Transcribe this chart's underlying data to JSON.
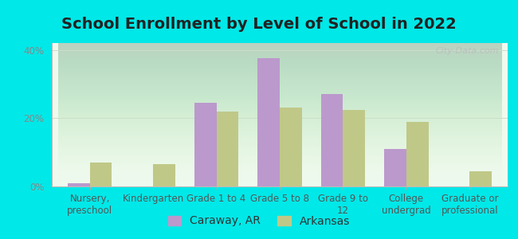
{
  "title": "School Enrollment by Level of School in 2022",
  "categories": [
    "Nursery,\npreschool",
    "Kindergarten",
    "Grade 1 to 4",
    "Grade 5 to 8",
    "Grade 9 to\n12",
    "College\nundergrad",
    "Graduate or\nprofessional"
  ],
  "caraway_values": [
    1.0,
    0.0,
    24.5,
    37.5,
    27.0,
    11.0,
    0.0
  ],
  "arkansas_values": [
    7.0,
    6.5,
    22.0,
    23.0,
    22.5,
    19.0,
    4.5
  ],
  "caraway_color": "#bb99cc",
  "arkansas_color": "#c0c888",
  "background_outer": "#00e8e8",
  "ylim": [
    0,
    42
  ],
  "yticks": [
    0,
    20,
    40
  ],
  "ytick_labels": [
    "0%",
    "20%",
    "40%"
  ],
  "title_fontsize": 14,
  "tick_fontsize": 8.5,
  "legend_fontsize": 10,
  "bar_width": 0.35,
  "watermark": "City-Data.com"
}
